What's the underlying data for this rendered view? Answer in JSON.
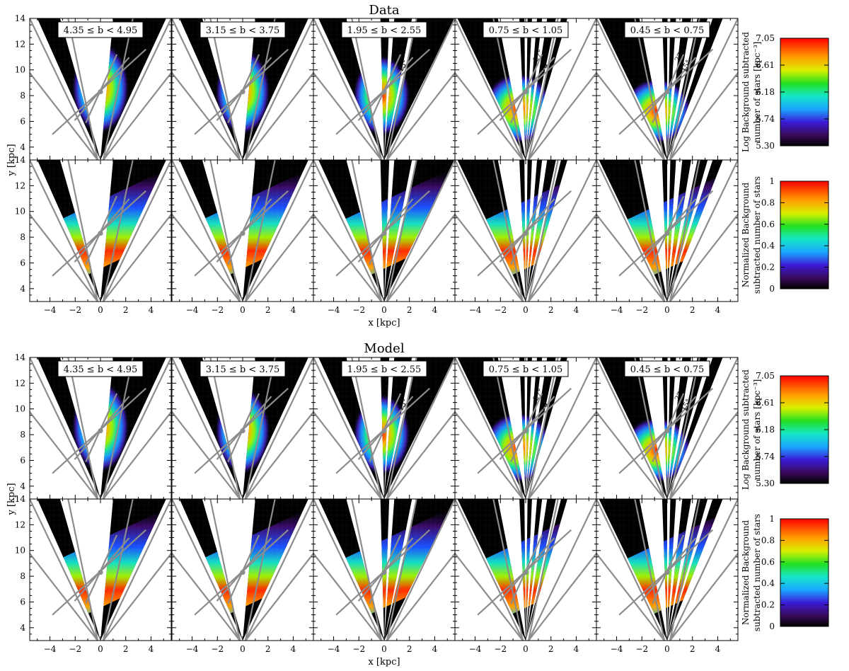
{
  "chart_data": {
    "type": "heatmap",
    "sections": [
      {
        "title": "Data"
      },
      {
        "title": "Model"
      }
    ],
    "panel_labels": [
      "4.35 ≤ b < 4.95",
      "3.15 ≤ b < 3.75",
      "1.95 ≤ b < 2.55",
      "0.75 ≤ b < 1.05",
      "0.45 ≤ b < 0.75"
    ],
    "xlabel": "x [kpc]",
    "ylabel": "y [kpc]",
    "xlim": [
      -5.6,
      5.6
    ],
    "ylim": [
      3,
      14
    ],
    "x_ticks": [
      "−4",
      "−2",
      "0",
      "2",
      "4"
    ],
    "x_tick_values": [
      -4,
      -2,
      0,
      2,
      4
    ],
    "y_ticks": [
      "4",
      "6",
      "8",
      "10",
      "12",
      "14"
    ],
    "y_tick_values": [
      4,
      6,
      8,
      10,
      12,
      14
    ],
    "angle_labels": [
      "27°",
      "15°"
    ],
    "colorbars": [
      {
        "label_lines": [
          "Log Background subtracted",
          "number of stars [kpc⁻³]"
        ],
        "ticks": [
          "7.05",
          "6.61",
          "6.18",
          "5.74",
          "5.30"
        ],
        "range": [
          5.3,
          7.05
        ]
      },
      {
        "label_lines": [
          "Normalized Background",
          "subtracted number of stars"
        ],
        "ticks": [
          "1",
          "0.8",
          "0.6",
          "0.4",
          "0.2",
          "0"
        ],
        "range": [
          0,
          1
        ]
      }
    ],
    "bar_center": {
      "x": 0,
      "y": 8.3
    },
    "bar_angles_deg": [
      27,
      15
    ],
    "grid": false,
    "legend": "right"
  }
}
